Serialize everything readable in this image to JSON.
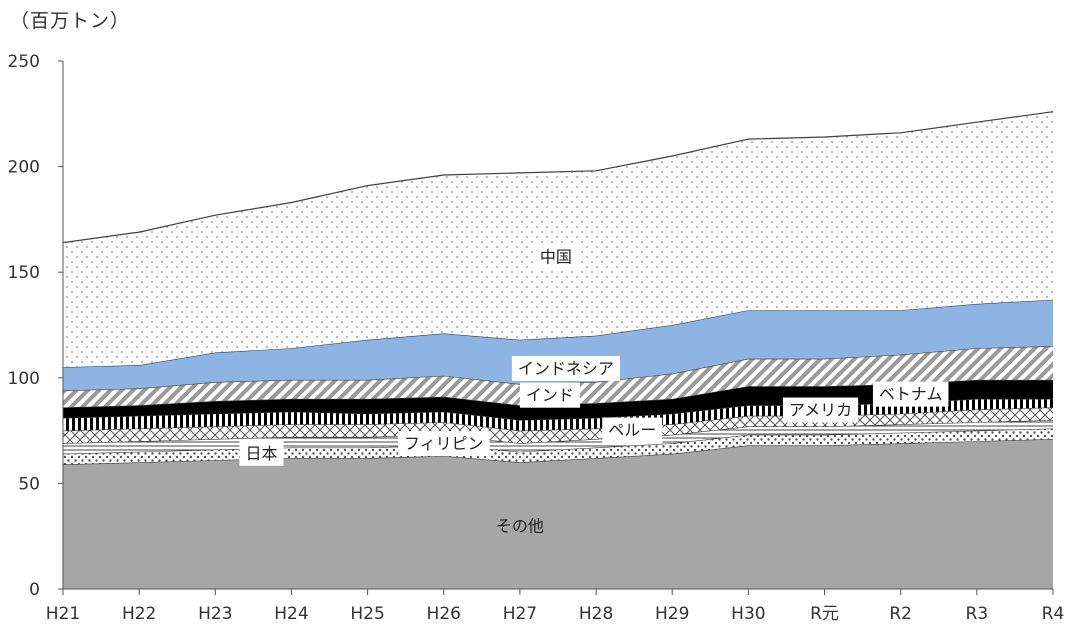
{
  "chart_data": {
    "type": "area",
    "stacked": true,
    "unit_label": "（百万トン）",
    "title": "",
    "xlabel": "",
    "ylabel": "",
    "ylim": [
      0,
      250
    ],
    "yticks": [
      0,
      50,
      100,
      150,
      200,
      250
    ],
    "grid": false,
    "legend": "none",
    "categories": [
      "H21",
      "H22",
      "H23",
      "H24",
      "H25",
      "H26",
      "H27",
      "H28",
      "H29",
      "H30",
      "R元",
      "R2",
      "R3",
      "R4"
    ],
    "series": [
      {
        "name": "その他",
        "color": "#a6a6a6",
        "pattern": "solid",
        "values": [
          59,
          60,
          61,
          62,
          62,
          63,
          60,
          62,
          64,
          68,
          68,
          69,
          70,
          71
        ]
      },
      {
        "name": "日本",
        "color": "#ffffff",
        "pattern": "dots",
        "values": [
          5,
          5,
          5,
          5,
          5,
          5,
          5,
          5,
          5,
          5,
          5,
          5,
          5,
          5
        ]
      },
      {
        "name": "フィリピン",
        "color": "#ffffff",
        "pattern": "hlines",
        "values": [
          5,
          5,
          5,
          5,
          5,
          5,
          4,
          4,
          4,
          4,
          4,
          4,
          4,
          4
        ]
      },
      {
        "name": "ペルー",
        "color": "#ffffff",
        "pattern": "crosshatch",
        "values": [
          6,
          6,
          6,
          6,
          6,
          6,
          6,
          5,
          5,
          5,
          5,
          5,
          6,
          6
        ]
      },
      {
        "name": "アメリカ",
        "color": "#ffffff",
        "pattern": "vbars",
        "values": [
          6,
          6,
          6,
          6,
          5,
          5,
          5,
          5,
          5,
          5,
          5,
          5,
          5,
          4
        ]
      },
      {
        "name": "ベトナム",
        "color": "#000000",
        "pattern": "solid",
        "values": [
          5,
          5,
          6,
          6,
          7,
          7,
          7,
          7,
          7,
          9,
          9,
          9,
          9,
          9
        ]
      },
      {
        "name": "インド",
        "color": "#ffffff",
        "pattern": "diagonal",
        "values": [
          8,
          8,
          9,
          9,
          9,
          10,
          10,
          10,
          12,
          13,
          13,
          14,
          15,
          16
        ]
      },
      {
        "name": "インドネシア",
        "color": "#8eb4e3",
        "pattern": "solid",
        "values": [
          11,
          11,
          14,
          15,
          19,
          20,
          21,
          22,
          23,
          23,
          23,
          21,
          21,
          22
        ]
      },
      {
        "name": "中国",
        "color": "#ffffff",
        "pattern": "finedots",
        "values": [
          59,
          63,
          65,
          69,
          73,
          75,
          79,
          78,
          80,
          81,
          82,
          84,
          86,
          89
        ]
      }
    ]
  }
}
